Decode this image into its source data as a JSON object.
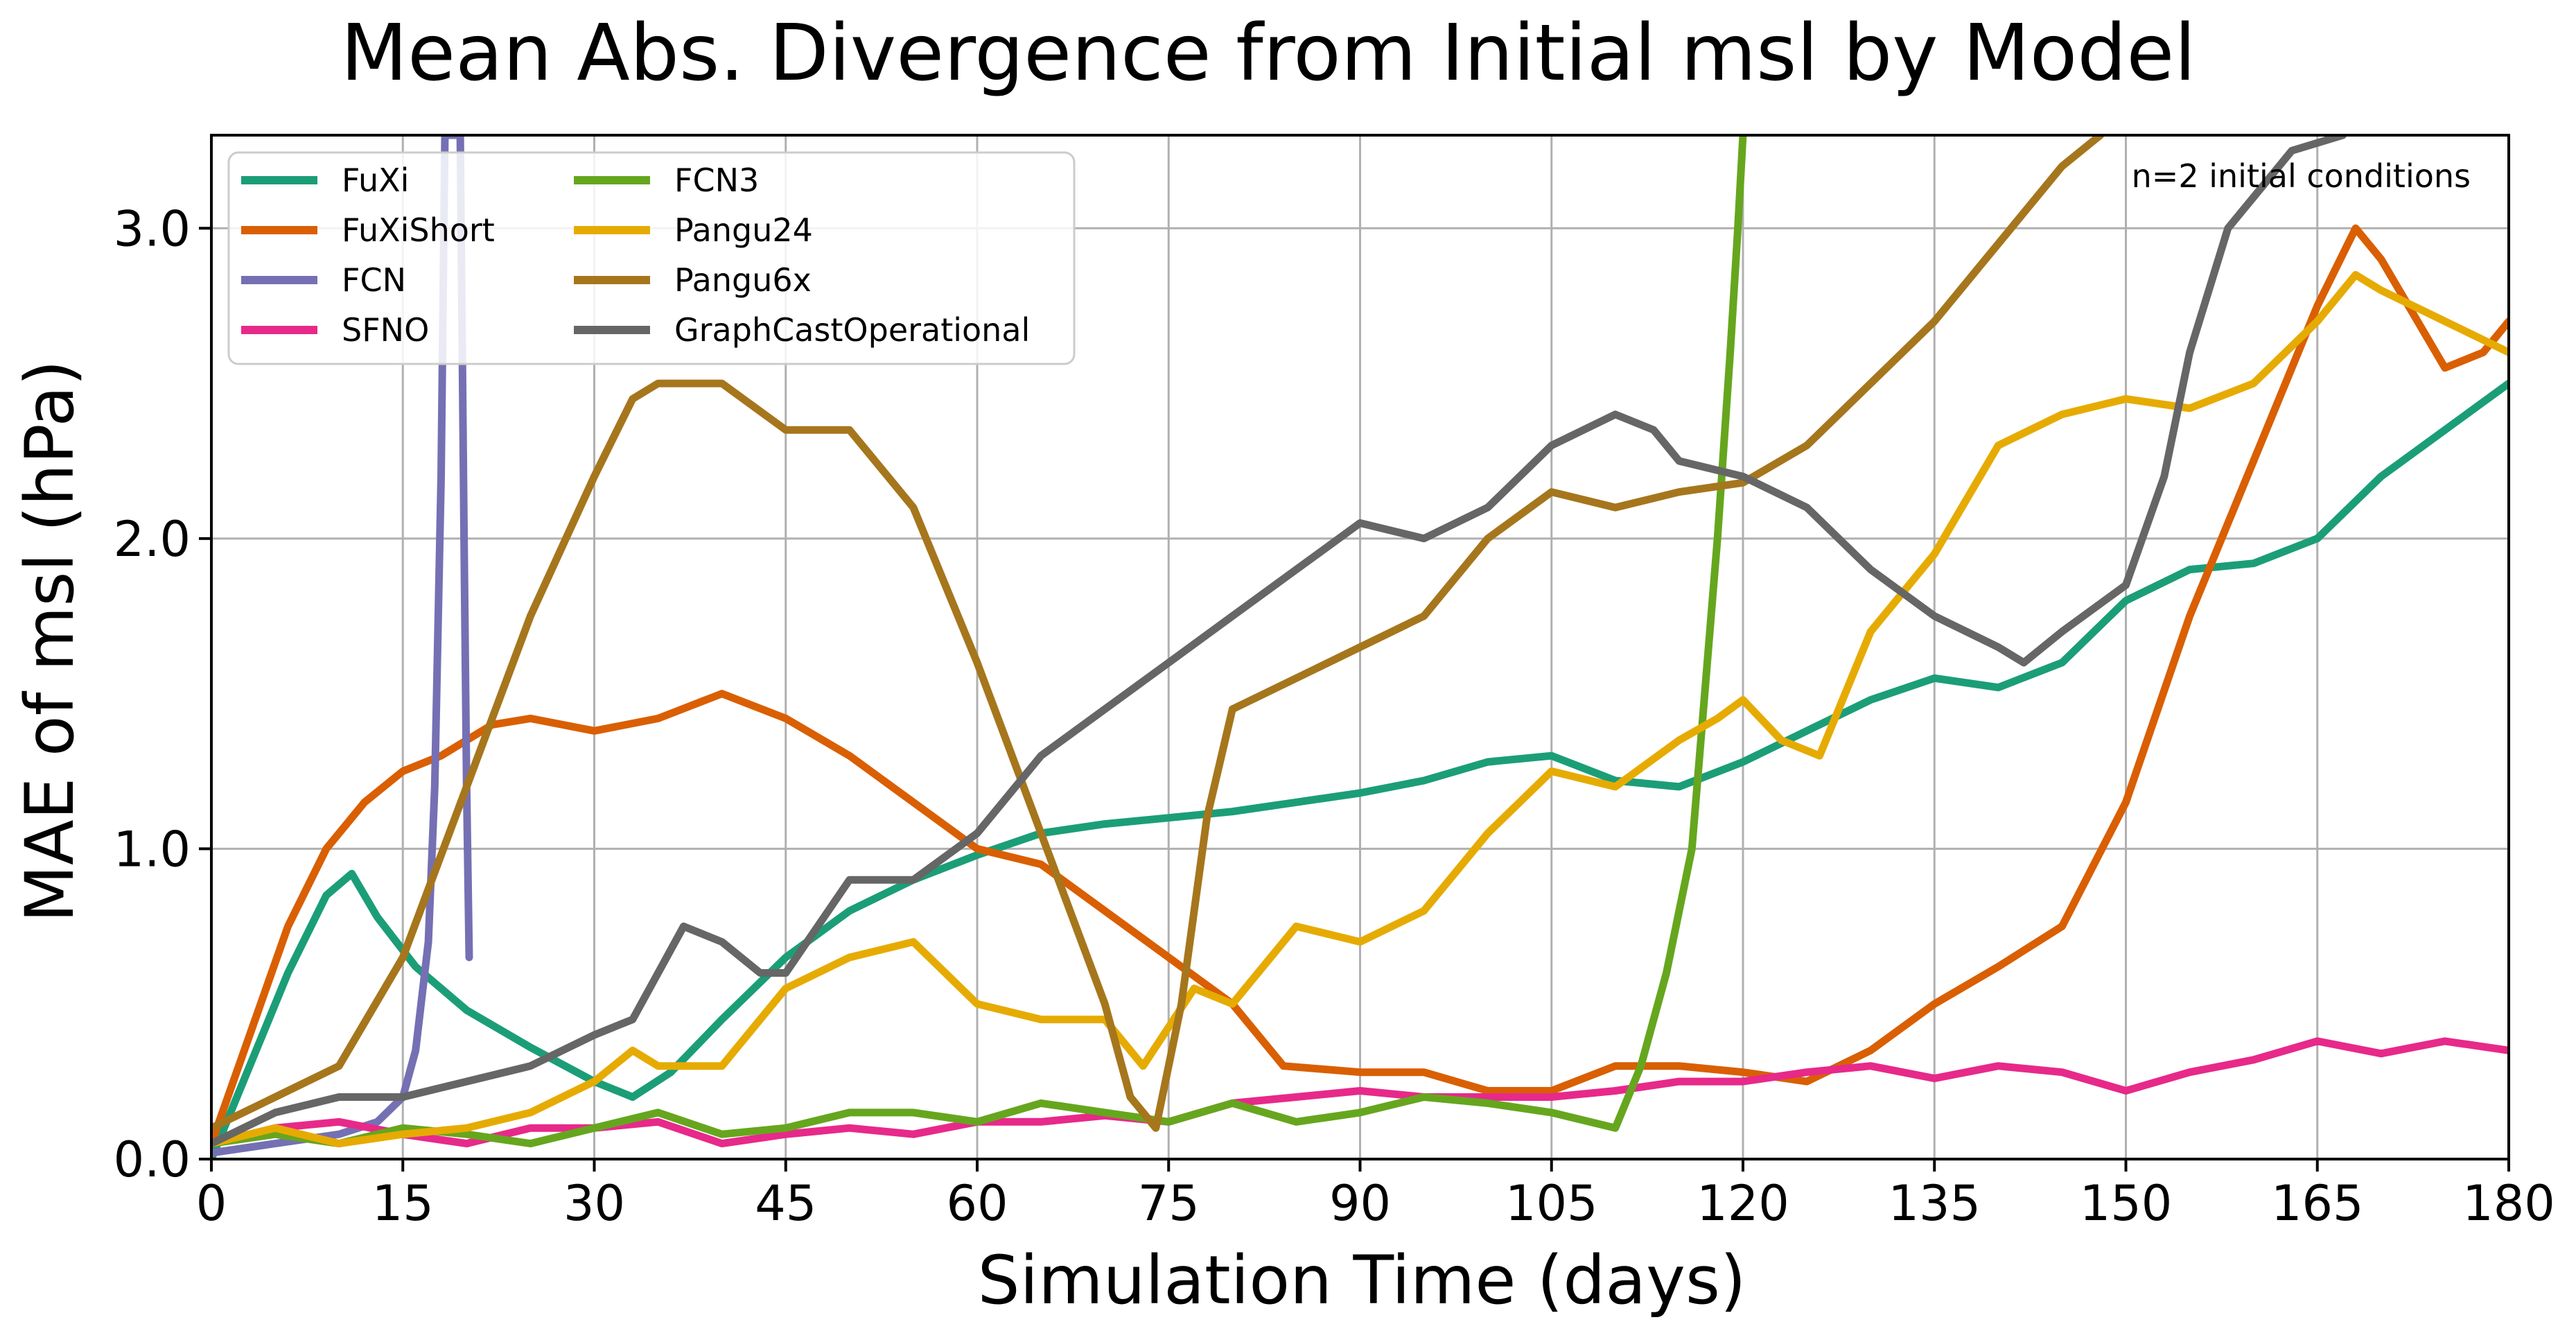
{
  "chart_data": {
    "type": "line",
    "title": "Mean Abs. Divergence from Initial msl by Model",
    "xlabel": "Simulation Time (days)",
    "ylabel": "MAE of msl (hPa)",
    "xlim": [
      0,
      180
    ],
    "ylim": [
      0,
      3.3
    ],
    "xticks": [
      0,
      15,
      30,
      45,
      60,
      75,
      90,
      105,
      120,
      135,
      150,
      165,
      180
    ],
    "yticks": [
      0.0,
      1.0,
      2.0,
      3.0
    ],
    "ytick_labels": [
      "0.0",
      "1.0",
      "2.0",
      "3.0"
    ],
    "grid": true,
    "legend_position": "top-left",
    "legend_columns": 2,
    "annotation": "n=2 initial conditions",
    "annotation_position": "top-right",
    "series": [
      {
        "name": "FuXi",
        "color": "#1b9e77",
        "x": [
          0,
          3,
          6,
          9,
          11,
          13,
          16,
          20,
          25,
          30,
          33,
          36,
          40,
          45,
          50,
          55,
          60,
          65,
          70,
          75,
          80,
          85,
          90,
          95,
          100,
          105,
          110,
          115,
          120,
          125,
          130,
          135,
          140,
          145,
          150,
          155,
          160,
          165,
          170,
          175,
          180
        ],
        "y": [
          0.0,
          0.3,
          0.6,
          0.85,
          0.92,
          0.78,
          0.62,
          0.48,
          0.36,
          0.25,
          0.2,
          0.28,
          0.45,
          0.65,
          0.8,
          0.9,
          0.98,
          1.05,
          1.08,
          1.1,
          1.12,
          1.15,
          1.18,
          1.22,
          1.28,
          1.3,
          1.22,
          1.2,
          1.28,
          1.38,
          1.48,
          1.55,
          1.52,
          1.6,
          1.8,
          1.9,
          1.92,
          2.0,
          2.2,
          2.35,
          2.5
        ]
      },
      {
        "name": "FuXiShort",
        "color": "#d95f02",
        "x": [
          0,
          3,
          6,
          9,
          12,
          15,
          18,
          22,
          25,
          30,
          35,
          40,
          45,
          50,
          55,
          60,
          65,
          70,
          75,
          80,
          84,
          90,
          95,
          100,
          105,
          110,
          115,
          120,
          125,
          130,
          135,
          140,
          145,
          150,
          155,
          160,
          165,
          168,
          170,
          175,
          178,
          180
        ],
        "y": [
          0.05,
          0.4,
          0.75,
          1.0,
          1.15,
          1.25,
          1.3,
          1.4,
          1.42,
          1.38,
          1.42,
          1.5,
          1.42,
          1.3,
          1.15,
          1.0,
          0.95,
          0.8,
          0.65,
          0.5,
          0.3,
          0.28,
          0.28,
          0.22,
          0.22,
          0.3,
          0.3,
          0.28,
          0.25,
          0.35,
          0.5,
          0.62,
          0.75,
          1.15,
          1.75,
          2.25,
          2.75,
          3.0,
          2.9,
          2.55,
          2.6,
          2.7
        ]
      },
      {
        "name": "FCN",
        "color": "#7570b3",
        "x": [
          0,
          5,
          10,
          13,
          15,
          16,
          17,
          17.5,
          18,
          18.3,
          19.5,
          19.8,
          20,
          20.2
        ],
        "y": [
          0.02,
          0.05,
          0.08,
          0.12,
          0.2,
          0.35,
          0.7,
          1.2,
          2.2,
          3.3,
          3.3,
          2.0,
          1.2,
          0.65
        ]
      },
      {
        "name": "SFNO",
        "color": "#e7298a",
        "x": [
          0,
          5,
          10,
          15,
          20,
          25,
          30,
          35,
          40,
          45,
          50,
          55,
          60,
          65,
          70,
          75,
          80,
          85,
          90,
          95,
          100,
          105,
          110,
          115,
          120,
          125,
          130,
          135,
          140,
          145,
          150,
          155,
          160,
          165,
          170,
          175,
          180
        ],
        "y": [
          0.05,
          0.1,
          0.12,
          0.08,
          0.05,
          0.1,
          0.1,
          0.12,
          0.05,
          0.08,
          0.1,
          0.08,
          0.12,
          0.12,
          0.14,
          0.12,
          0.18,
          0.2,
          0.22,
          0.2,
          0.2,
          0.2,
          0.22,
          0.25,
          0.25,
          0.28,
          0.3,
          0.26,
          0.3,
          0.28,
          0.22,
          0.28,
          0.32,
          0.38,
          0.34,
          0.38,
          0.35
        ]
      },
      {
        "name": "FCN3",
        "color": "#66a61e",
        "x": [
          0,
          5,
          10,
          15,
          20,
          25,
          30,
          35,
          40,
          45,
          50,
          55,
          60,
          65,
          70,
          75,
          80,
          85,
          90,
          95,
          100,
          105,
          110,
          112,
          114,
          116,
          117,
          118,
          119,
          119.6,
          120
        ],
        "y": [
          0.05,
          0.08,
          0.05,
          0.1,
          0.08,
          0.05,
          0.1,
          0.15,
          0.08,
          0.1,
          0.15,
          0.15,
          0.12,
          0.18,
          0.15,
          0.12,
          0.18,
          0.12,
          0.15,
          0.2,
          0.18,
          0.15,
          0.1,
          0.3,
          0.6,
          1.0,
          1.5,
          2.0,
          2.6,
          3.0,
          3.3
        ]
      },
      {
        "name": "Pangu24",
        "color": "#e6ab02",
        "x": [
          0,
          5,
          10,
          15,
          20,
          25,
          30,
          33,
          35,
          40,
          45,
          50,
          55,
          60,
          65,
          70,
          73,
          77,
          80,
          85,
          90,
          95,
          100,
          105,
          110,
          115,
          118,
          120,
          123,
          126,
          130,
          135,
          140,
          145,
          150,
          155,
          160,
          165,
          168,
          170,
          175,
          180
        ],
        "y": [
          0.05,
          0.1,
          0.05,
          0.08,
          0.1,
          0.15,
          0.25,
          0.35,
          0.3,
          0.3,
          0.55,
          0.65,
          0.7,
          0.5,
          0.45,
          0.45,
          0.3,
          0.55,
          0.5,
          0.75,
          0.7,
          0.8,
          1.05,
          1.25,
          1.2,
          1.35,
          1.42,
          1.48,
          1.35,
          1.3,
          1.7,
          1.95,
          2.3,
          2.4,
          2.45,
          2.42,
          2.5,
          2.7,
          2.85,
          2.8,
          2.7,
          2.6
        ]
      },
      {
        "name": "Pangu6x",
        "color": "#a6761d",
        "x": [
          0,
          5,
          10,
          15,
          20,
          25,
          30,
          33,
          35,
          40,
          45,
          50,
          55,
          60,
          65,
          70,
          72,
          74,
          76,
          78,
          80,
          85,
          90,
          95,
          100,
          105,
          110,
          115,
          120,
          125,
          130,
          135,
          140,
          145,
          148
        ],
        "y": [
          0.1,
          0.2,
          0.3,
          0.65,
          1.2,
          1.75,
          2.2,
          2.45,
          2.5,
          2.5,
          2.35,
          2.35,
          2.1,
          1.6,
          1.05,
          0.5,
          0.2,
          0.1,
          0.5,
          1.1,
          1.45,
          1.55,
          1.65,
          1.75,
          2.0,
          2.15,
          2.1,
          2.15,
          2.18,
          2.3,
          2.5,
          2.7,
          2.95,
          3.2,
          3.3
        ]
      },
      {
        "name": "GraphCastOperational",
        "color": "#666666",
        "x": [
          0,
          5,
          10,
          15,
          20,
          25,
          30,
          33,
          35,
          37,
          40,
          43,
          45,
          50,
          55,
          60,
          65,
          70,
          75,
          80,
          85,
          90,
          95,
          100,
          105,
          110,
          113,
          115,
          120,
          125,
          130,
          135,
          140,
          142,
          145,
          150,
          153,
          155,
          158,
          160,
          163,
          167
        ],
        "y": [
          0.05,
          0.15,
          0.2,
          0.2,
          0.25,
          0.3,
          0.4,
          0.45,
          0.6,
          0.75,
          0.7,
          0.6,
          0.6,
          0.9,
          0.9,
          1.05,
          1.3,
          1.45,
          1.6,
          1.75,
          1.9,
          2.05,
          2.0,
          2.1,
          2.3,
          2.4,
          2.35,
          2.25,
          2.2,
          2.1,
          1.9,
          1.75,
          1.65,
          1.6,
          1.7,
          1.85,
          2.2,
          2.6,
          3.0,
          3.1,
          3.25,
          3.3
        ]
      }
    ]
  }
}
